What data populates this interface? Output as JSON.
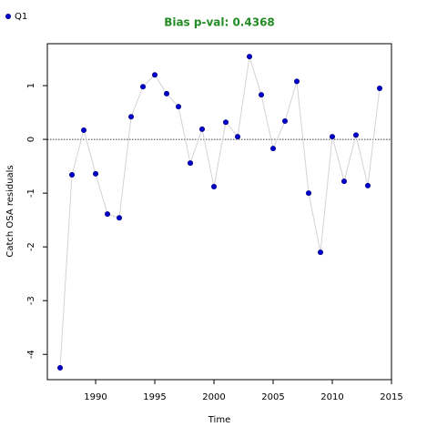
{
  "chart_data": {
    "type": "line",
    "title": "Bias p-val: 0.4368",
    "title_color": "#228b22",
    "x_label": "Time",
    "y_label": "Catch OSA residuals",
    "x": [
      1987,
      1988,
      1989,
      1990,
      1991,
      1992,
      1993,
      1994,
      1995,
      1996,
      1997,
      1998,
      1999,
      2000,
      2001,
      2002,
      2003,
      2004,
      2005,
      2006,
      2007,
      2008,
      2009,
      2010,
      2011,
      2012,
      2013,
      2014
    ],
    "series": [
      {
        "name": "Q1",
        "color": "#0000cc",
        "line_color": "#d3d3d3",
        "values": [
          -4.25,
          -0.66,
          0.17,
          -0.64,
          -1.39,
          -1.46,
          0.42,
          0.98,
          1.2,
          0.85,
          0.61,
          -0.44,
          0.19,
          -0.88,
          0.32,
          0.05,
          1.54,
          0.83,
          -0.17,
          0.34,
          1.08,
          -1.0,
          -2.1,
          0.05,
          -0.78,
          0.08,
          -0.86,
          0.95
        ]
      }
    ],
    "xlim": [
      1985.92,
      2015
    ],
    "ylim": [
      -4.47,
      1.78
    ],
    "xticks": [
      1990,
      1995,
      2000,
      2005,
      2010,
      2015
    ],
    "yticks": [
      -4,
      -3,
      -2,
      -1,
      0,
      1
    ],
    "reference_line": 0,
    "legend": "top-left"
  }
}
